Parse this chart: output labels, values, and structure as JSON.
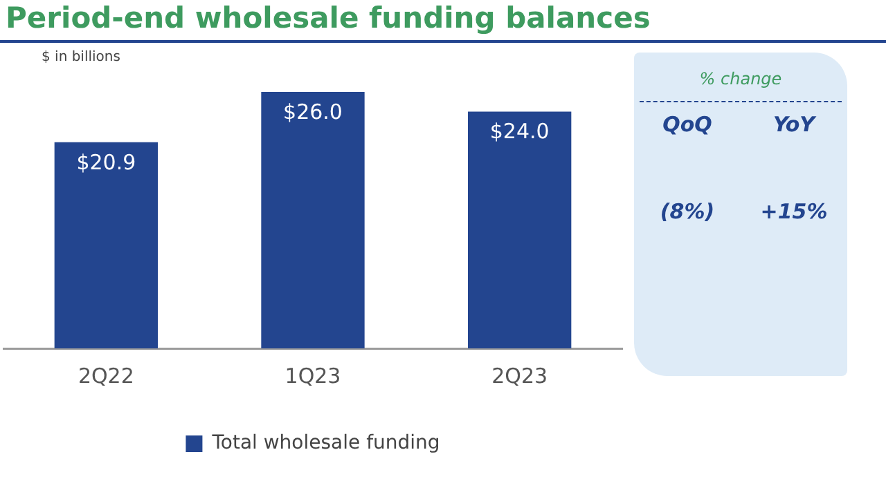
{
  "chart_data": [
    {
      "type": "bar",
      "title": "Period-end wholesale funding balances",
      "subtitle": "$ in billions",
      "categories": [
        "2Q22",
        "1Q23",
        "2Q23"
      ],
      "series": [
        {
          "name": "Total wholesale funding",
          "color": "#23458f",
          "values": [
            20.9,
            26.0,
            24.0
          ],
          "value_labels": [
            "$20.9",
            "$26.0",
            "$24.0"
          ]
        }
      ],
      "legend": "bottom"
    },
    {
      "type": "other",
      "title": "% change",
      "annotations": [
        "QoQ",
        "YoY",
        "(8%)",
        "+15%"
      ]
    }
  ]
}
